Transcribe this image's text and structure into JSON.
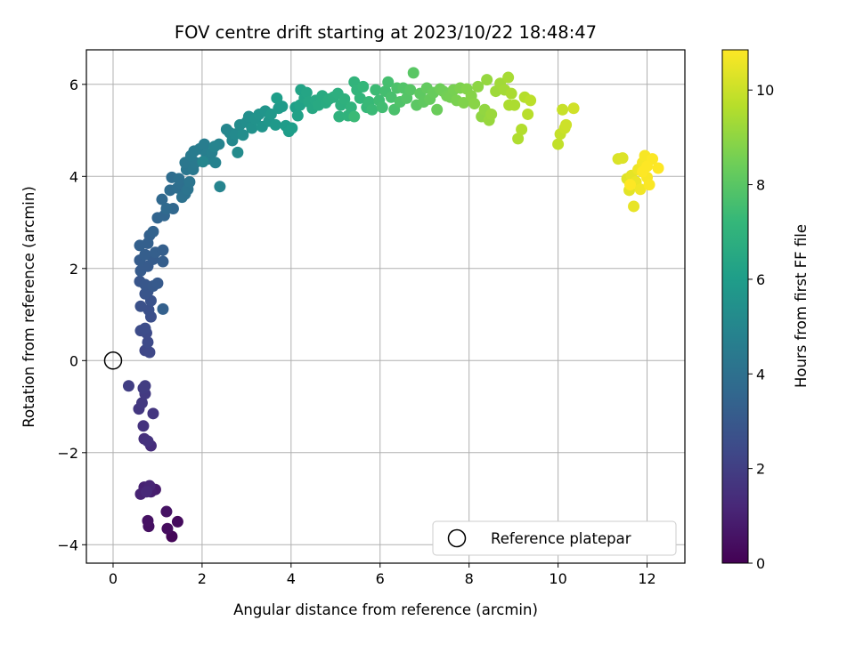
{
  "chart_data": {
    "type": "scatter",
    "title": "FOV centre drift starting at 2023/10/22 18:48:47",
    "xlabel": "Angular distance from reference (arcmin)",
    "ylabel": "Rotation from reference (arcmin)",
    "xlim": [
      -0.6,
      12.85
    ],
    "ylim": [
      -4.4,
      6.75
    ],
    "xticks": [
      0,
      2,
      4,
      6,
      8,
      10,
      12
    ],
    "yticks": [
      -4,
      -2,
      0,
      2,
      4,
      6
    ],
    "grid": true,
    "colorbar": {
      "label": "Hours from first FF file",
      "colormap": "viridis",
      "range": [
        0,
        10.85
      ],
      "ticks": [
        0,
        2,
        4,
        6,
        8,
        10
      ]
    },
    "legend": {
      "placement": "lower-right",
      "entries": [
        "Reference platepar"
      ]
    },
    "reference_point": {
      "x": 0,
      "y": 0
    },
    "colormap_stops": [
      "#440154",
      "#482878",
      "#3e4a89",
      "#31688e",
      "#26828e",
      "#1f9e89",
      "#35b779",
      "#6ece58",
      "#b5de2b",
      "#fde725"
    ],
    "points": [
      [
        1.32,
        -3.82,
        0.15
      ],
      [
        1.45,
        -3.5,
        0.3
      ],
      [
        1.22,
        -3.65,
        0.35
      ],
      [
        0.8,
        -3.6,
        0.45
      ],
      [
        0.78,
        -3.48,
        0.5
      ],
      [
        1.2,
        -3.28,
        0.55
      ],
      [
        0.95,
        -2.8,
        0.8
      ],
      [
        0.85,
        -2.85,
        0.9
      ],
      [
        0.7,
        -2.75,
        1.0
      ],
      [
        0.62,
        -2.9,
        1.05
      ],
      [
        0.82,
        -2.72,
        1.1
      ],
      [
        0.75,
        -2.85,
        1.2
      ],
      [
        0.85,
        -1.85,
        1.4
      ],
      [
        0.7,
        -1.7,
        1.5
      ],
      [
        0.78,
        -1.75,
        1.55
      ],
      [
        0.68,
        -1.42,
        1.6
      ],
      [
        0.9,
        -1.15,
        1.7
      ],
      [
        0.58,
        -1.05,
        1.75
      ],
      [
        0.65,
        -0.92,
        1.8
      ],
      [
        0.72,
        -0.72,
        1.85
      ],
      [
        0.68,
        -0.6,
        1.9
      ],
      [
        0.72,
        -0.55,
        1.95
      ],
      [
        0.35,
        -0.55,
        2.0
      ],
      [
        0.72,
        0.22,
        2.3
      ],
      [
        0.82,
        0.18,
        2.35
      ],
      [
        0.78,
        0.4,
        2.4
      ],
      [
        0.75,
        0.6,
        2.45
      ],
      [
        0.62,
        0.65,
        2.5
      ],
      [
        0.72,
        0.7,
        2.55
      ],
      [
        0.85,
        0.95,
        2.6
      ],
      [
        0.8,
        1.1,
        2.65
      ],
      [
        0.62,
        1.18,
        2.7
      ],
      [
        0.85,
        1.3,
        2.75
      ],
      [
        0.72,
        1.45,
        2.8
      ],
      [
        0.78,
        1.5,
        2.85
      ],
      [
        0.6,
        1.72,
        2.9
      ],
      [
        0.72,
        1.65,
        2.95
      ],
      [
        0.9,
        1.62,
        3.0
      ],
      [
        1.0,
        1.68,
        3.05
      ],
      [
        0.62,
        1.95,
        3.1
      ],
      [
        0.78,
        2.05,
        3.1
      ],
      [
        0.6,
        2.18,
        3.15
      ],
      [
        0.9,
        2.2,
        3.15
      ],
      [
        1.12,
        2.15,
        3.2
      ],
      [
        0.72,
        2.3,
        3.2
      ],
      [
        0.95,
        2.35,
        3.25
      ],
      [
        1.12,
        2.4,
        3.25
      ],
      [
        0.6,
        2.5,
        3.3
      ],
      [
        0.78,
        2.55,
        3.3
      ],
      [
        0.82,
        2.72,
        3.35
      ],
      [
        0.9,
        2.8,
        3.4
      ],
      [
        1.12,
        1.12,
        3.35
      ],
      [
        1.0,
        3.1,
        3.5
      ],
      [
        1.15,
        3.15,
        3.55
      ],
      [
        1.35,
        3.3,
        3.6
      ],
      [
        1.1,
        3.5,
        3.65
      ],
      [
        1.2,
        3.3,
        3.7
      ],
      [
        1.28,
        3.7,
        3.8
      ],
      [
        1.32,
        3.98,
        3.85
      ],
      [
        1.45,
        3.75,
        3.9
      ],
      [
        1.55,
        3.82,
        3.95
      ],
      [
        1.48,
        3.95,
        4.0
      ],
      [
        1.62,
        3.62,
        4.05
      ],
      [
        1.55,
        3.55,
        4.1
      ],
      [
        1.68,
        3.72,
        4.15
      ],
      [
        1.72,
        3.88,
        4.2
      ],
      [
        1.65,
        4.15,
        4.25
      ],
      [
        1.62,
        4.3,
        4.3
      ],
      [
        1.8,
        4.15,
        4.35
      ],
      [
        1.85,
        4.3,
        4.4
      ],
      [
        1.75,
        4.45,
        4.45
      ],
      [
        1.82,
        4.55,
        4.5
      ],
      [
        1.95,
        4.6,
        4.55
      ],
      [
        2.05,
        4.7,
        4.6
      ],
      [
        2.1,
        4.48,
        4.65
      ],
      [
        2.15,
        4.38,
        4.7
      ],
      [
        2.22,
        4.52,
        4.75
      ],
      [
        2.3,
        4.3,
        4.8
      ],
      [
        2.38,
        4.7,
        4.85
      ],
      [
        2.4,
        3.78,
        4.9
      ],
      [
        2.28,
        4.65,
        4.9
      ],
      [
        2.02,
        4.32,
        4.95
      ],
      [
        2.55,
        5.02,
        5.0
      ],
      [
        2.62,
        4.95,
        5.05
      ],
      [
        2.68,
        4.78,
        5.1
      ],
      [
        2.75,
        4.92,
        5.15
      ],
      [
        2.8,
        4.52,
        5.2
      ],
      [
        2.85,
        5.12,
        5.25
      ],
      [
        2.92,
        4.9,
        5.3
      ],
      [
        3.0,
        5.18,
        5.35
      ],
      [
        3.05,
        5.3,
        5.4
      ],
      [
        3.12,
        5.05,
        5.45
      ],
      [
        3.2,
        5.25,
        5.5
      ],
      [
        3.28,
        5.35,
        5.55
      ],
      [
        3.35,
        5.08,
        5.6
      ],
      [
        3.42,
        5.42,
        5.65
      ],
      [
        3.5,
        5.2,
        5.7
      ],
      [
        3.55,
        5.35,
        5.75
      ],
      [
        3.65,
        5.12,
        5.8
      ],
      [
        3.72,
        5.48,
        5.85
      ],
      [
        3.8,
        5.52,
        5.9
      ],
      [
        3.88,
        5.1,
        5.95
      ],
      [
        3.95,
        4.98,
        6.0
      ],
      [
        4.02,
        5.05,
        6.05
      ],
      [
        3.68,
        5.7,
        6.05
      ],
      [
        4.1,
        5.5,
        6.1
      ],
      [
        4.15,
        5.32,
        6.15
      ],
      [
        4.2,
        5.55,
        6.2
      ],
      [
        4.22,
        5.88,
        6.25
      ],
      [
        4.3,
        5.7,
        6.3
      ],
      [
        4.35,
        5.82,
        6.35
      ],
      [
        4.4,
        5.62,
        6.4
      ],
      [
        4.48,
        5.48,
        6.45
      ],
      [
        4.55,
        5.65,
        6.5
      ],
      [
        4.62,
        5.55,
        6.55
      ],
      [
        4.7,
        5.75,
        6.6
      ],
      [
        4.78,
        5.6,
        6.65
      ],
      [
        4.85,
        5.68,
        6.7
      ],
      [
        4.95,
        5.72,
        6.75
      ],
      [
        5.05,
        5.8,
        6.8
      ],
      [
        5.12,
        5.55,
        6.85
      ],
      [
        5.2,
        5.68,
        6.9
      ],
      [
        5.08,
        5.3,
        6.95
      ],
      [
        5.28,
        5.32,
        7.0
      ],
      [
        5.35,
        5.5,
        7.0
      ],
      [
        5.42,
        6.05,
        7.05
      ],
      [
        5.48,
        5.88,
        7.1
      ],
      [
        5.55,
        5.7,
        7.15
      ],
      [
        5.62,
        5.95,
        7.2
      ],
      [
        5.7,
        5.5,
        7.25
      ],
      [
        5.75,
        5.62,
        7.3
      ],
      [
        5.82,
        5.45,
        7.35
      ],
      [
        5.42,
        5.3,
        7.35
      ],
      [
        5.9,
        5.88,
        7.4
      ],
      [
        5.98,
        5.65,
        7.45
      ],
      [
        6.05,
        5.5,
        7.5
      ],
      [
        6.12,
        5.85,
        7.55
      ],
      [
        6.18,
        6.05,
        7.6
      ],
      [
        6.25,
        5.72,
        7.65
      ],
      [
        6.32,
        5.45,
        7.7
      ],
      [
        6.38,
        5.92,
        7.75
      ],
      [
        6.45,
        5.62,
        7.8
      ],
      [
        6.52,
        5.92,
        7.85
      ],
      [
        6.6,
        5.7,
        7.9
      ],
      [
        6.68,
        5.88,
        7.95
      ],
      [
        6.75,
        6.25,
        8.0
      ],
      [
        6.82,
        5.55,
        8.05
      ],
      [
        6.9,
        5.8,
        8.1
      ],
      [
        6.98,
        5.62,
        8.15
      ],
      [
        7.05,
        5.92,
        8.2
      ],
      [
        7.12,
        5.68,
        8.25
      ],
      [
        7.2,
        5.82,
        8.3
      ],
      [
        7.28,
        5.45,
        8.35
      ],
      [
        7.35,
        5.9,
        8.4
      ],
      [
        7.42,
        5.85,
        8.45
      ],
      [
        7.5,
        5.75,
        8.5
      ],
      [
        7.58,
        5.72,
        8.55
      ],
      [
        7.65,
        5.88,
        8.6
      ],
      [
        7.72,
        5.65,
        8.65
      ],
      [
        7.8,
        5.92,
        8.7
      ],
      [
        7.88,
        5.6,
        8.75
      ],
      [
        7.95,
        5.9,
        8.8
      ],
      [
        8.05,
        5.75,
        8.85
      ],
      [
        8.12,
        5.58,
        8.9
      ],
      [
        8.2,
        5.95,
        8.95
      ],
      [
        8.28,
        5.3,
        9.0
      ],
      [
        8.35,
        5.45,
        9.05
      ],
      [
        8.4,
        6.1,
        9.1
      ],
      [
        8.45,
        5.22,
        9.15
      ],
      [
        8.5,
        5.35,
        9.2
      ],
      [
        8.6,
        5.85,
        9.25
      ],
      [
        8.7,
        6.02,
        9.3
      ],
      [
        8.8,
        5.88,
        9.35
      ],
      [
        8.88,
        6.15,
        9.4
      ],
      [
        8.95,
        5.8,
        9.45
      ],
      [
        9.02,
        5.55,
        9.5
      ],
      [
        8.9,
        5.55,
        9.5
      ],
      [
        9.1,
        4.82,
        9.55
      ],
      [
        9.18,
        5.02,
        9.6
      ],
      [
        9.25,
        5.72,
        9.65
      ],
      [
        9.32,
        5.35,
        9.7
      ],
      [
        9.38,
        5.65,
        9.75
      ],
      [
        10.0,
        4.7,
        9.85
      ],
      [
        10.05,
        4.92,
        9.9
      ],
      [
        10.1,
        5.45,
        9.95
      ],
      [
        10.15,
        5.05,
        10.0
      ],
      [
        10.18,
        5.12,
        10.05
      ],
      [
        10.35,
        5.48,
        10.1
      ],
      [
        11.35,
        4.38,
        10.25
      ],
      [
        11.45,
        4.4,
        10.3
      ],
      [
        11.55,
        3.95,
        10.35
      ],
      [
        11.6,
        3.7,
        10.4
      ],
      [
        11.65,
        4.02,
        10.45
      ],
      [
        11.7,
        3.35,
        10.5
      ],
      [
        11.75,
        3.88,
        10.55
      ],
      [
        11.8,
        4.15,
        10.6
      ],
      [
        11.85,
        3.72,
        10.65
      ],
      [
        11.9,
        4.3,
        10.7
      ],
      [
        11.95,
        4.45,
        10.75
      ],
      [
        12.0,
        3.98,
        10.78
      ],
      [
        12.05,
        3.82,
        10.8
      ],
      [
        12.12,
        4.38,
        10.82
      ],
      [
        12.25,
        4.18,
        10.85
      ],
      [
        11.62,
        3.82,
        10.85
      ],
      [
        11.9,
        4.1,
        10.85
      ],
      [
        12.0,
        4.22,
        10.85
      ]
    ]
  }
}
